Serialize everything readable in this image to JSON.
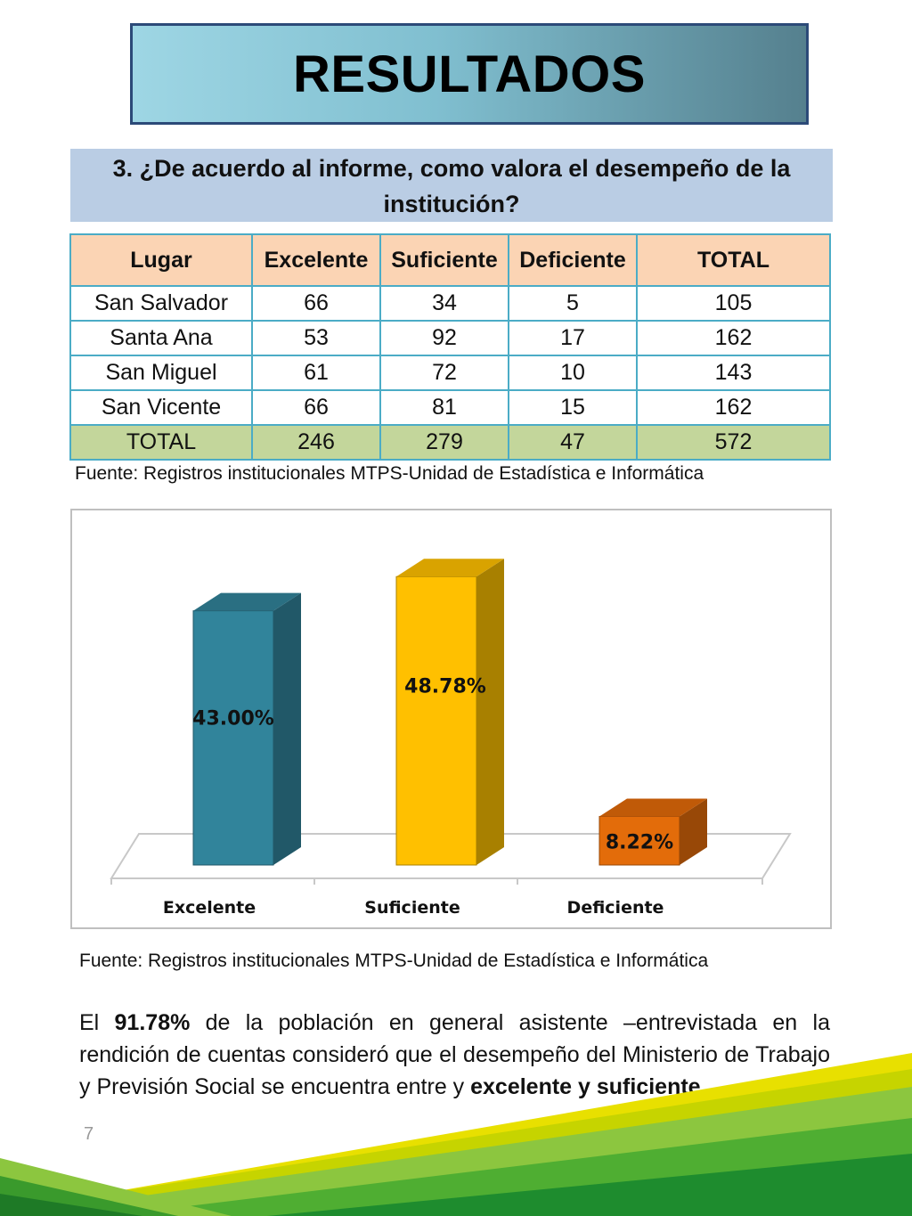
{
  "title": "RESULTADOS",
  "question": "3. ¿De acuerdo al informe, como valora el desempeño de la institución?",
  "table": {
    "headers": [
      "Lugar",
      "Excelente",
      "Suficiente",
      "Deficiente",
      "TOTAL"
    ],
    "rows": [
      [
        "San Salvador",
        "66",
        "34",
        "5",
        "105"
      ],
      [
        "Santa Ana",
        "53",
        "92",
        "17",
        "162"
      ],
      [
        "San Miguel",
        "61",
        "72",
        "10",
        "143"
      ],
      [
        "San Vicente",
        "66",
        "81",
        "15",
        "162"
      ]
    ],
    "total_row": [
      "TOTAL",
      "246",
      "279",
      "47",
      "572"
    ]
  },
  "source_1": "Fuente: Registros institucionales MTPS-Unidad de Estadística e Informática",
  "source_2": "Fuente: Registros institucionales MTPS-Unidad de Estadística e Informática",
  "chart_data": {
    "type": "bar",
    "categories": [
      "Excelente",
      "Suficiente",
      "Deficiente"
    ],
    "values": [
      43.0,
      48.78,
      8.22
    ],
    "value_labels": [
      "43.00%",
      "48.78%",
      "8.22%"
    ],
    "colors": [
      "#31849b",
      "#ffc000",
      "#e36c0a"
    ],
    "side_colors": [
      "#215868",
      "#a88000",
      "#984807"
    ],
    "top_colors": [
      "#2a6f82",
      "#d9a300",
      "#c05a08"
    ],
    "ylim": [
      0,
      55
    ],
    "grid": false,
    "legend": "none",
    "title": "",
    "xlabel": "",
    "ylabel": ""
  },
  "paragraph": {
    "part1": "El ",
    "bold1": "91.78%",
    "part2": " de la población en general asistente –entrevistada en la rendición de cuentas consideró que el desempeño del Ministerio de Trabajo y Previsión Social se encuentra entre y ",
    "bold2": "excelente y suficiente",
    "part3": "."
  },
  "page_number": "7",
  "colors": {
    "title_border": "#2c4a78",
    "question_bg": "#bacde4",
    "header_bg": "#fbd4b4",
    "total_bg": "#c3d69b",
    "table_border": "#4bacc6"
  }
}
